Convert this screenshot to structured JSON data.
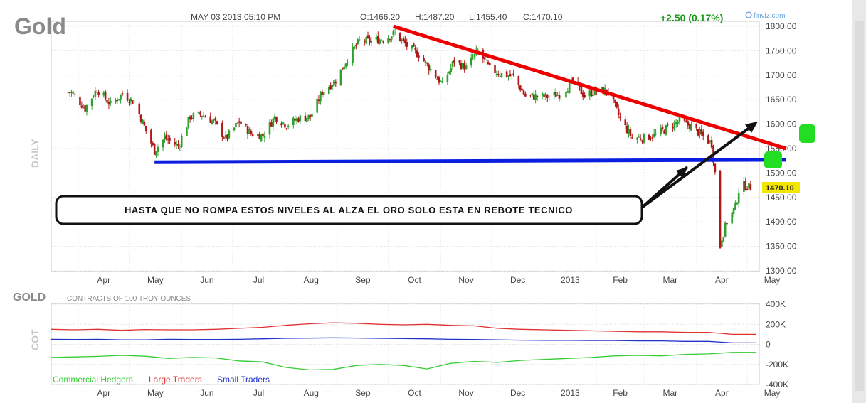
{
  "header": {
    "symbol": "Gold",
    "datetime": "MAY 03 2013 05:10 PM",
    "open": "O:1466.20",
    "high": "H:1487.20",
    "low": "L:1455.40",
    "close": "C:1470.10",
    "change": "+2.50 (0.17%)",
    "source": "finviz.com"
  },
  "annotation": {
    "text": "HASTA QUE NO ROMPA ESTOS NIVELES AL ALZA EL ORO SOLO ESTA EN REBOTE TECNICO"
  },
  "colors": {
    "up": "#2ea02e",
    "down": "#b01818",
    "resistance": "#ee0000",
    "support": "#0a1ee0",
    "marker": "#22dd22",
    "price_tag": "#f2e600",
    "change": "#1a9a1a"
  },
  "chart_data": [
    {
      "type": "candlestick",
      "side_label": "DAILY",
      "x_ticks": [
        "Apr",
        "May",
        "Jun",
        "Jul",
        "Aug",
        "Sep",
        "Oct",
        "Nov",
        "Dec",
        "2013",
        "Feb",
        "Mar",
        "Apr",
        "May"
      ],
      "y_ticks": [
        "1800.00",
        "1750.00",
        "1700.00",
        "1650.00",
        "1600.00",
        "1550.00",
        "1500.00",
        "1450.00",
        "1400.00",
        "1350.00",
        "1300.00"
      ],
      "ylim": [
        1300,
        1800
      ],
      "last_price": "1470.10",
      "close_series": [
        {
          "date": "2012-03-28",
          "close": 1665
        },
        {
          "date": "2012-04-05",
          "close": 1632
        },
        {
          "date": "2012-04-12",
          "close": 1672
        },
        {
          "date": "2012-04-20",
          "close": 1640
        },
        {
          "date": "2012-04-27",
          "close": 1662
        },
        {
          "date": "2012-05-04",
          "close": 1645
        },
        {
          "date": "2012-05-10",
          "close": 1595
        },
        {
          "date": "2012-05-16",
          "close": 1545
        },
        {
          "date": "2012-05-22",
          "close": 1572
        },
        {
          "date": "2012-05-30",
          "close": 1555
        },
        {
          "date": "2012-06-06",
          "close": 1615
        },
        {
          "date": "2012-06-13",
          "close": 1620
        },
        {
          "date": "2012-06-20",
          "close": 1605
        },
        {
          "date": "2012-06-27",
          "close": 1570
        },
        {
          "date": "2012-07-05",
          "close": 1605
        },
        {
          "date": "2012-07-12",
          "close": 1580
        },
        {
          "date": "2012-07-19",
          "close": 1577
        },
        {
          "date": "2012-07-26",
          "close": 1615
        },
        {
          "date": "2012-08-02",
          "close": 1598
        },
        {
          "date": "2012-08-09",
          "close": 1612
        },
        {
          "date": "2012-08-16",
          "close": 1615
        },
        {
          "date": "2012-08-23",
          "close": 1665
        },
        {
          "date": "2012-08-31",
          "close": 1690
        },
        {
          "date": "2012-09-07",
          "close": 1735
        },
        {
          "date": "2012-09-14",
          "close": 1770
        },
        {
          "date": "2012-09-21",
          "close": 1770
        },
        {
          "date": "2012-09-28",
          "close": 1775
        },
        {
          "date": "2012-10-05",
          "close": 1785
        },
        {
          "date": "2012-10-12",
          "close": 1760
        },
        {
          "date": "2012-10-19",
          "close": 1742
        },
        {
          "date": "2012-10-26",
          "close": 1712
        },
        {
          "date": "2012-11-02",
          "close": 1680
        },
        {
          "date": "2012-11-09",
          "close": 1730
        },
        {
          "date": "2012-11-16",
          "close": 1715
        },
        {
          "date": "2012-11-23",
          "close": 1750
        },
        {
          "date": "2012-11-30",
          "close": 1712
        },
        {
          "date": "2012-12-07",
          "close": 1702
        },
        {
          "date": "2012-12-14",
          "close": 1697
        },
        {
          "date": "2012-12-21",
          "close": 1657
        },
        {
          "date": "2012-12-28",
          "close": 1657
        },
        {
          "date": "2013-01-04",
          "close": 1656
        },
        {
          "date": "2013-01-11",
          "close": 1662
        },
        {
          "date": "2013-01-18",
          "close": 1687
        },
        {
          "date": "2013-01-25",
          "close": 1658
        },
        {
          "date": "2013-02-01",
          "close": 1669
        },
        {
          "date": "2013-02-08",
          "close": 1667
        },
        {
          "date": "2013-02-15",
          "close": 1610
        },
        {
          "date": "2013-02-22",
          "close": 1572
        },
        {
          "date": "2013-03-01",
          "close": 1572
        },
        {
          "date": "2013-03-08",
          "close": 1578
        },
        {
          "date": "2013-03-15",
          "close": 1593
        },
        {
          "date": "2013-03-22",
          "close": 1606
        },
        {
          "date": "2013-03-29",
          "close": 1595
        },
        {
          "date": "2013-04-05",
          "close": 1575
        },
        {
          "date": "2013-04-10",
          "close": 1560
        },
        {
          "date": "2013-04-12",
          "close": 1500
        },
        {
          "date": "2013-04-15",
          "close": 1350
        },
        {
          "date": "2013-04-16",
          "close": 1368
        },
        {
          "date": "2013-04-19",
          "close": 1400
        },
        {
          "date": "2013-04-24",
          "close": 1430
        },
        {
          "date": "2013-04-26",
          "close": 1465
        },
        {
          "date": "2013-04-29",
          "close": 1475
        },
        {
          "date": "2013-05-03",
          "close": 1470
        }
      ],
      "resistance_line": [
        {
          "date": "2012-10-04",
          "price": 1800
        },
        {
          "date": "2013-05-24",
          "price": 1550
        }
      ],
      "support_line": [
        {
          "date": "2012-05-16",
          "price": 1522
        },
        {
          "date": "2013-05-24",
          "price": 1527
        }
      ]
    },
    {
      "type": "line",
      "title": "GOLD",
      "subtitle": "CONTRACTS OF 100 TROY OUNCES",
      "side_label": "COT",
      "x_ticks": [
        "Apr",
        "May",
        "Jun",
        "Jul",
        "Aug",
        "Sep",
        "Oct",
        "Nov",
        "Dec",
        "2013",
        "Feb",
        "Mar",
        "Apr",
        "May"
      ],
      "y_ticks": [
        "400K",
        "200K",
        "0",
        "-200K",
        "-400K"
      ],
      "ylim": [
        -400,
        400
      ],
      "series": [
        {
          "name": "Commercial Hedgers",
          "color": "#33cc33",
          "values": [
            -130,
            -125,
            -120,
            -110,
            -118,
            -140,
            -130,
            -135,
            -165,
            -175,
            -230,
            -255,
            -250,
            -210,
            -200,
            -210,
            -245,
            -190,
            -170,
            -180,
            -160,
            -150,
            -140,
            -130,
            -115,
            -110,
            -115,
            -100,
            -95,
            -80,
            -80
          ]
        },
        {
          "name": "Large Traders",
          "color": "#e03030",
          "values": [
            150,
            145,
            150,
            140,
            148,
            145,
            145,
            150,
            160,
            170,
            190,
            205,
            215,
            210,
            200,
            195,
            200,
            190,
            185,
            160,
            150,
            145,
            140,
            135,
            130,
            125,
            125,
            120,
            120,
            100,
            100
          ]
        },
        {
          "name": "Small Traders",
          "color": "#2233cc",
          "values": [
            50,
            48,
            50,
            45,
            45,
            50,
            48,
            48,
            50,
            55,
            60,
            62,
            65,
            63,
            60,
            58,
            55,
            50,
            48,
            45,
            42,
            40,
            40,
            38,
            38,
            35,
            35,
            30,
            30,
            15,
            15
          ]
        }
      ]
    }
  ]
}
